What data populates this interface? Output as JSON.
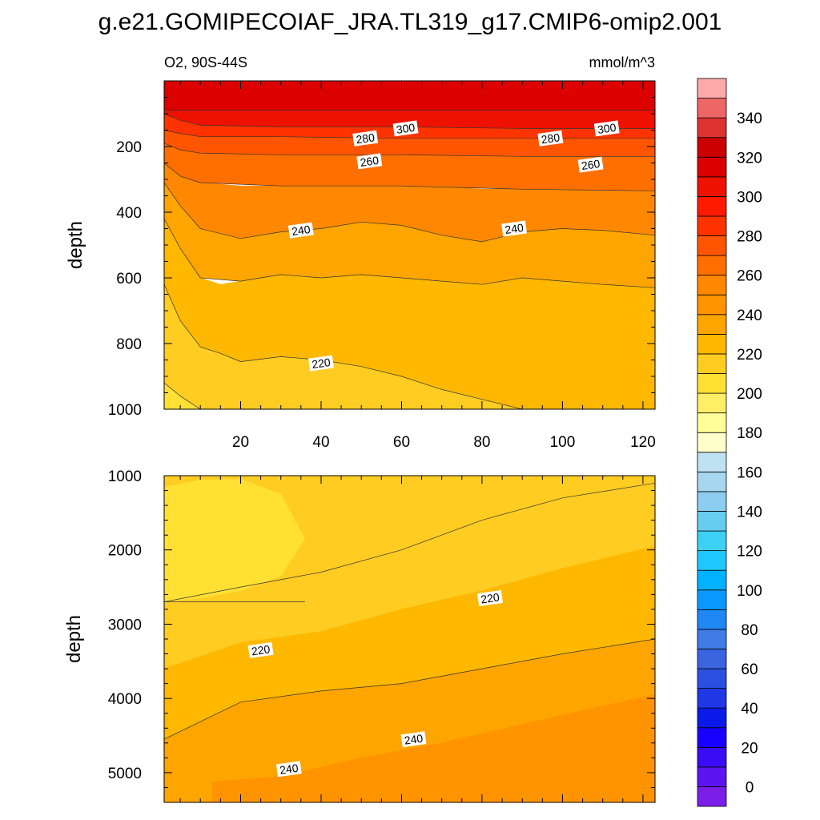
{
  "title": "g.e21.GOMIPECOIAF_JRA.TL319_g17.CMIP6-omip2.001",
  "variable_label": "O2, 90S-44S",
  "units_label": "mmol/m^3",
  "chart_data": [
    {
      "type": "contour",
      "panel": "upper",
      "variable": "O2",
      "region": "90S-44S",
      "units": "mmol/m^3",
      "x": {
        "label": "",
        "range": [
          1,
          123
        ],
        "ticks": [
          20,
          40,
          60,
          80,
          100,
          120
        ],
        "minor_step": 5
      },
      "y": {
        "label": "depth",
        "range": [
          0,
          1000
        ],
        "inverted": true,
        "ticks": [
          200,
          400,
          600,
          800,
          1000
        ],
        "minor_step": 50
      },
      "fill_bands": [
        {
          "x": [
            1,
            123
          ],
          "y_top": [
            0,
            0
          ],
          "y_bot": [
            90,
            90
          ],
          "color": "#dc0000"
        },
        {
          "x": [
            1,
            5,
            10,
            30,
            60,
            90,
            123
          ],
          "y_top": [
            90,
            90,
            90,
            90,
            90,
            90,
            90
          ],
          "y_bot": [
            100,
            120,
            135,
            140,
            140,
            145,
            145
          ],
          "color": "#ee1100"
        },
        {
          "x": [
            1,
            5,
            10,
            30,
            60,
            90,
            123
          ],
          "y_top": [
            100,
            120,
            135,
            140,
            140,
            145,
            145
          ],
          "y_bot": [
            150,
            160,
            170,
            170,
            175,
            175,
            175
          ],
          "color": "#ff3300"
        },
        {
          "x": [
            1,
            5,
            10,
            30,
            60,
            90,
            123
          ],
          "y_top": [
            150,
            160,
            170,
            170,
            175,
            175,
            175
          ],
          "y_bot": [
            190,
            210,
            220,
            225,
            225,
            230,
            230
          ],
          "color": "#ff5500"
        },
        {
          "x": [
            1,
            5,
            10,
            30,
            60,
            90,
            123
          ],
          "y_top": [
            190,
            210,
            220,
            225,
            225,
            230,
            230
          ],
          "y_bot": [
            250,
            290,
            310,
            320,
            320,
            330,
            335
          ],
          "color": "#ff6f00"
        },
        {
          "x": [
            1,
            5,
            10,
            20,
            30,
            40,
            50,
            60,
            70,
            80,
            90,
            100,
            110,
            123
          ],
          "y_top": [
            250,
            290,
            310,
            320,
            320,
            320,
            320,
            320,
            320,
            330,
            330,
            330,
            335,
            335
          ],
          "y_bot": [
            310,
            380,
            450,
            480,
            460,
            450,
            430,
            440,
            470,
            490,
            460,
            450,
            455,
            470
          ],
          "color": "#ff8800"
        },
        {
          "x": [
            1,
            5,
            10,
            20,
            30,
            40,
            50,
            60,
            70,
            80,
            90,
            100,
            110,
            123
          ],
          "y_top": [
            310,
            380,
            450,
            480,
            460,
            450,
            430,
            440,
            470,
            490,
            460,
            450,
            455,
            470
          ],
          "y_bot": [
            420,
            510,
            600,
            610,
            590,
            600,
            590,
            600,
            610,
            620,
            600,
            610,
            620,
            630
          ],
          "color": "#ffa500"
        },
        {
          "x": [
            1,
            5,
            10,
            15,
            20,
            30,
            40,
            50,
            60,
            70,
            80,
            90,
            100,
            110,
            123
          ],
          "y_top": [
            420,
            510,
            600,
            620,
            610,
            590,
            600,
            590,
            600,
            610,
            620,
            600,
            610,
            620,
            630
          ],
          "y_bot": [
            620,
            730,
            810,
            830,
            855,
            840,
            850,
            870,
            900,
            940,
            970,
            1000,
            1000,
            1000,
            1000
          ],
          "color": "#ffb800"
        },
        {
          "x": [
            1,
            5,
            10,
            15,
            20,
            30,
            40,
            50,
            60,
            70,
            80,
            90,
            100,
            110,
            123
          ],
          "y_top": [
            620,
            730,
            810,
            830,
            855,
            840,
            850,
            870,
            900,
            940,
            970,
            1000,
            1000,
            1000,
            1000
          ],
          "y_bot": [
            920,
            960,
            1000,
            1000,
            1000,
            1000,
            1000,
            1000,
            1000,
            1000,
            1000,
            1000,
            1000,
            1000,
            1000
          ],
          "color": "#ffcc22"
        },
        {
          "x": [
            1,
            5,
            10
          ],
          "y_top": [
            920,
            960,
            1000
          ],
          "y_bot": [
            1000,
            1000,
            1000
          ],
          "color": "#ffe033"
        }
      ],
      "contour_labels": [
        {
          "text": "300",
          "x": 61,
          "y": 145
        },
        {
          "text": "300",
          "x": 111,
          "y": 145
        },
        {
          "text": "280",
          "x": 51,
          "y": 175
        },
        {
          "text": "280",
          "x": 97,
          "y": 175
        },
        {
          "text": "260",
          "x": 52,
          "y": 245
        },
        {
          "text": "260",
          "x": 107,
          "y": 255
        },
        {
          "text": "240",
          "x": 35,
          "y": 455
        },
        {
          "text": "240",
          "x": 88,
          "y": 450
        },
        {
          "text": "220",
          "x": 40,
          "y": 860
        }
      ]
    },
    {
      "type": "contour",
      "panel": "lower",
      "variable": "O2",
      "region": "90S-44S",
      "units": "mmol/m^3",
      "x": {
        "label": "",
        "range": [
          1,
          123
        ],
        "ticks": [
          20,
          40,
          60,
          80,
          100,
          120
        ],
        "minor_step": 5,
        "tick_labels_shown": false
      },
      "y": {
        "label": "depth",
        "range": [
          1000,
          5400
        ],
        "inverted": true,
        "ticks": [
          1000,
          2000,
          3000,
          4000,
          5000
        ],
        "minor_step": 200
      },
      "fill_bands": [
        {
          "x": [
            1,
            123
          ],
          "y_top": [
            1000,
            1000
          ],
          "y_bot": [
            5400,
            5400
          ],
          "color": "#ffcc22"
        },
        {
          "x": [
            1,
            20,
            40,
            60,
            80,
            100,
            123
          ],
          "y_top": [
            1000,
            1000,
            1000,
            1000,
            1000,
            1000,
            1000
          ],
          "y_bot": [
            2700,
            2500,
            2300,
            2000,
            1600,
            1300,
            1100
          ],
          "color": "#ffcc22"
        },
        {
          "x": [
            1,
            10,
            20,
            30,
            36,
            30,
            20,
            10,
            1
          ],
          "y_top": [
            1150,
            1060,
            1050,
            1250,
            1850,
            2350,
            2550,
            2650,
            2700
          ],
          "y_bot": [
            2700,
            2700,
            2700,
            2700,
            2700,
            2700,
            2700,
            2700,
            2700
          ],
          "color": "#ffe033"
        },
        {
          "x": [
            1,
            20,
            40,
            60,
            80,
            100,
            123
          ],
          "y_top": [
            3600,
            3250,
            3100,
            2800,
            2550,
            2250,
            1950
          ],
          "y_bot": [
            4550,
            4050,
            3900,
            3800,
            3600,
            3400,
            3200
          ],
          "color": "#ffb800"
        },
        {
          "x": [
            1,
            20,
            40,
            60,
            80,
            100,
            123
          ],
          "y_top": [
            4550,
            4050,
            3900,
            3800,
            3600,
            3400,
            3200
          ],
          "y_bot": [
            5400,
            5400,
            5400,
            5400,
            5400,
            5400,
            5400
          ],
          "color": "#ffa500"
        },
        {
          "x": [
            13,
            30,
            50,
            70,
            90,
            110,
            123
          ],
          "y_top": [
            5120,
            5050,
            4800,
            4600,
            4350,
            4100,
            3950
          ],
          "y_bot": [
            5400,
            5400,
            5400,
            5400,
            5400,
            5400,
            5400
          ],
          "color": "#ff9400"
        }
      ],
      "contour_labels": [
        {
          "text": "220",
          "x": 82,
          "y": 2650
        },
        {
          "text": "220",
          "x": 25,
          "y": 3350
        },
        {
          "text": "240",
          "x": 63,
          "y": 4550
        },
        {
          "text": "240",
          "x": 32,
          "y": 4950
        }
      ]
    }
  ],
  "colorbar": {
    "levels": [
      0,
      10,
      20,
      30,
      40,
      50,
      60,
      70,
      80,
      90,
      100,
      110,
      120,
      130,
      140,
      150,
      160,
      170,
      180,
      190,
      200,
      210,
      220,
      230,
      240,
      250,
      260,
      270,
      280,
      290,
      300,
      310,
      320,
      330,
      340,
      350
    ],
    "label_values": [
      "0",
      "20",
      "40",
      "60",
      "80",
      "100",
      "120",
      "140",
      "160",
      "180",
      "200",
      "220",
      "240",
      "260",
      "280",
      "300",
      "320",
      "340"
    ],
    "colors": [
      "#7b1fe8",
      "#5c14f0",
      "#3a0cf5",
      "#1a00ff",
      "#0a1ae8",
      "#1e38e6",
      "#2b4fe0",
      "#3b64e0",
      "#3f7ce6",
      "#1f88f5",
      "#0a9aff",
      "#00b2ff",
      "#1ec8ff",
      "#3cd0f5",
      "#66ccf0",
      "#8ccdf0",
      "#a7d7f0",
      "#bfe2f2",
      "#ffffcc",
      "#ffff99",
      "#ffee66",
      "#ffe033",
      "#ffcc22",
      "#ffb800",
      "#ffa500",
      "#ff9400",
      "#ff8800",
      "#ff6f00",
      "#ff5500",
      "#ff3300",
      "#ff1a00",
      "#ee1100",
      "#dc0000",
      "#cc0000",
      "#dd3333",
      "#ee6666",
      "#ffaaaa"
    ]
  }
}
